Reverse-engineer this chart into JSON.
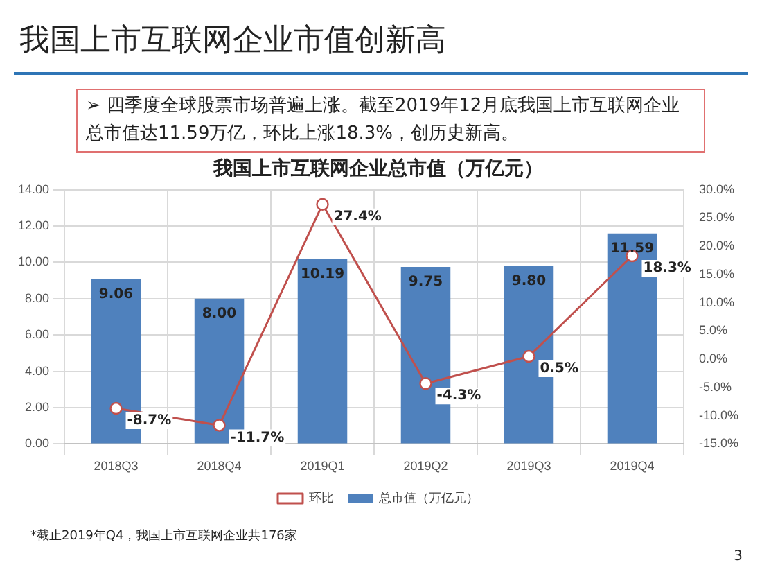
{
  "chart_data": {
    "type": "bar",
    "title": "我国上市互联网企业总市值（万亿元）",
    "annotations": [
      "我国上市互联网企业市值创新高",
      "➢ 四季度全球股票市场普遍上涨。截至2019年12月底我国上市互联网企业总市值达11.59万亿，环比上涨18.3%，创历史新高。",
      "*截止2019年Q4，我国上市互联网企业共176家",
      "3"
    ],
    "categories": [
      "2018Q3",
      "2018Q4",
      "2019Q1",
      "2019Q2",
      "2019Q3",
      "2019Q4"
    ],
    "series": [
      {
        "name": "总市值（万亿元）",
        "color": "#4f81bd",
        "values": [
          9.06,
          8.0,
          10.19,
          9.75,
          9.8,
          11.59
        ],
        "value_labels": [
          "9.06",
          "8.00",
          "10.19",
          "9.75",
          "9.80",
          "11.59"
        ]
      },
      {
        "name": "环比",
        "type": "line",
        "axis": "y2",
        "color": "#c0504d",
        "marker": "circle",
        "values": [
          -8.7,
          -11.7,
          27.4,
          -4.3,
          0.5,
          18.3
        ],
        "value_labels": [
          "-8.7%",
          "-11.7%",
          "27.4%",
          "-4.3%",
          "0.5%",
          "18.3%"
        ]
      }
    ],
    "ylim": [
      0,
      14
    ],
    "yticks": [
      {
        "value": 0,
        "label": "0.00"
      },
      {
        "value": 2,
        "label": "2.00"
      },
      {
        "value": 4,
        "label": "4.00"
      },
      {
        "value": 6,
        "label": "6.00"
      },
      {
        "value": 8,
        "label": "8.00"
      },
      {
        "value": 10,
        "label": "10.00"
      },
      {
        "value": 12,
        "label": "12.00"
      },
      {
        "value": 14,
        "label": "14.00"
      }
    ],
    "y2lim": [
      -15,
      30
    ],
    "y2ticks": [
      {
        "value": -15,
        "label": "-15.0%"
      },
      {
        "value": -10,
        "label": "-10.0%"
      },
      {
        "value": -5,
        "label": "-5.0%"
      },
      {
        "value": 0,
        "label": "0.0%"
      },
      {
        "value": 5,
        "label": "5.0%"
      },
      {
        "value": 10,
        "label": "10.0%"
      },
      {
        "value": 15,
        "label": "15.0%"
      },
      {
        "value": 20,
        "label": "20.0%"
      },
      {
        "value": 25,
        "label": "25.0%"
      },
      {
        "value": 30,
        "label": "30.0%"
      }
    ],
    "grid": true,
    "legend": "bottom"
  }
}
